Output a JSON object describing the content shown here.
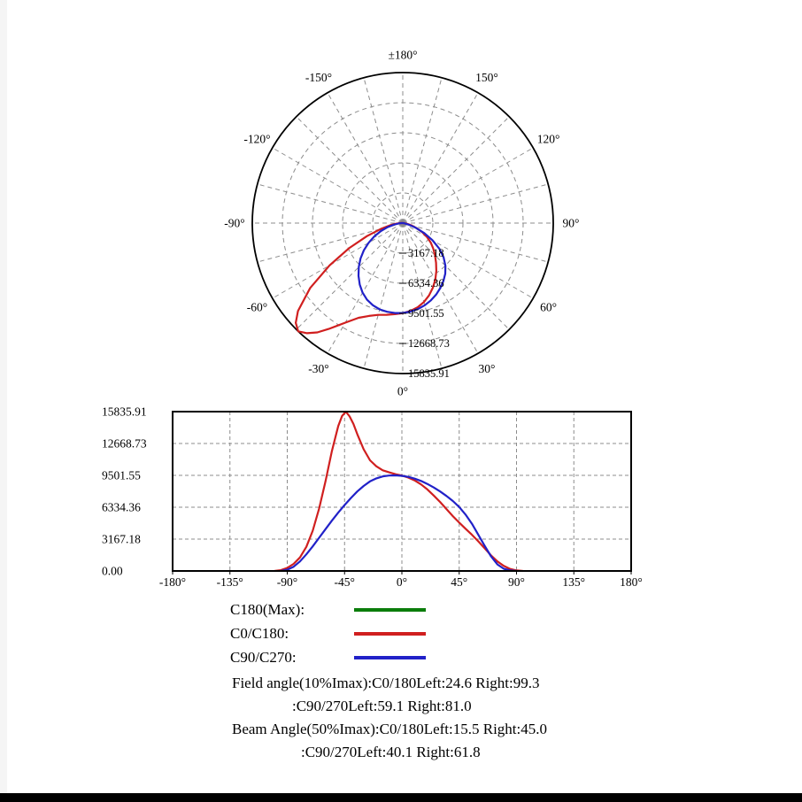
{
  "colors": {
    "red": "#d01f1f",
    "blue": "#2121c8",
    "green": "#0b7d0b",
    "grid": "#8c8c8c",
    "axis": "#000000"
  },
  "chart_data": {
    "type": "line",
    "title": "",
    "views": [
      "polar",
      "cartesian"
    ],
    "imax": 15835.91,
    "unit_ticks": [
      0,
      3167.18,
      6334.36,
      9501.55,
      12668.73,
      15835.91
    ],
    "polar": {
      "spoke_step": 15,
      "angle_labels": [
        {
          "angle": 180,
          "label": "±180°"
        },
        {
          "angle": -150,
          "label": "-150°"
        },
        {
          "angle": 150,
          "label": "150°"
        },
        {
          "angle": -120,
          "label": "-120°"
        },
        {
          "angle": 120,
          "label": "120°"
        },
        {
          "angle": -90,
          "label": "-90°"
        },
        {
          "angle": 90,
          "label": "90°"
        },
        {
          "angle": -60,
          "label": "-60°"
        },
        {
          "angle": 60,
          "label": "60°"
        },
        {
          "angle": -30,
          "label": "-30°"
        },
        {
          "angle": 30,
          "label": "30°"
        },
        {
          "angle": 0,
          "label": "0°"
        }
      ],
      "radial_tick_labels": [
        "3167.18",
        "6334.36",
        "9501.55",
        "12668.73",
        "15835.91"
      ]
    },
    "cartesian": {
      "xlim": [
        -180,
        180
      ],
      "ylim": [
        0,
        15835.91
      ],
      "x_ticks": [
        {
          "value": -180,
          "label": "-180°"
        },
        {
          "value": -135,
          "label": "-135°"
        },
        {
          "value": -90,
          "label": "-90°"
        },
        {
          "value": -45,
          "label": "-45°"
        },
        {
          "value": 0,
          "label": "0°"
        },
        {
          "value": 45,
          "label": "45°"
        },
        {
          "value": 90,
          "label": "90°"
        },
        {
          "value": 135,
          "label": "135°"
        },
        {
          "value": 180,
          "label": "180°"
        }
      ],
      "y_tick_labels": [
        "15835.91",
        "12668.73",
        "9501.55",
        "6334.36",
        "3167.18",
        "0.00"
      ]
    },
    "series": [
      {
        "name": "C180(Max)",
        "color_key": "green",
        "points": []
      },
      {
        "name": "C0/C180",
        "color_key": "red",
        "points": [
          [
            -100,
            0
          ],
          [
            -95,
            80
          ],
          [
            -90,
            300
          ],
          [
            -85,
            700
          ],
          [
            -80,
            1350
          ],
          [
            -75,
            2400
          ],
          [
            -70,
            4000
          ],
          [
            -65,
            6200
          ],
          [
            -60,
            8900
          ],
          [
            -55,
            11900
          ],
          [
            -50,
            14400
          ],
          [
            -47,
            15400
          ],
          [
            -44,
            15835.91
          ],
          [
            -41,
            15350
          ],
          [
            -38,
            14600
          ],
          [
            -35,
            13600
          ],
          [
            -30,
            12100
          ],
          [
            -25,
            11000
          ],
          [
            -20,
            10400
          ],
          [
            -15,
            10000
          ],
          [
            -10,
            9800
          ],
          [
            -5,
            9620
          ],
          [
            0,
            9480
          ],
          [
            5,
            9280
          ],
          [
            10,
            9000
          ],
          [
            15,
            8600
          ],
          [
            20,
            8100
          ],
          [
            25,
            7500
          ],
          [
            30,
            6850
          ],
          [
            35,
            6150
          ],
          [
            40,
            5450
          ],
          [
            45,
            4800
          ],
          [
            50,
            4200
          ],
          [
            55,
            3600
          ],
          [
            60,
            2950
          ],
          [
            65,
            2250
          ],
          [
            70,
            1550
          ],
          [
            75,
            950
          ],
          [
            80,
            500
          ],
          [
            85,
            200
          ],
          [
            90,
            50
          ],
          [
            95,
            0
          ]
        ]
      },
      {
        "name": "C90/C270",
        "color_key": "blue",
        "points": [
          [
            -95,
            0
          ],
          [
            -90,
            120
          ],
          [
            -85,
            420
          ],
          [
            -80,
            950
          ],
          [
            -75,
            1650
          ],
          [
            -70,
            2450
          ],
          [
            -65,
            3300
          ],
          [
            -60,
            4150
          ],
          [
            -55,
            5000
          ],
          [
            -50,
            5800
          ],
          [
            -45,
            6550
          ],
          [
            -40,
            7250
          ],
          [
            -35,
            7900
          ],
          [
            -30,
            8450
          ],
          [
            -25,
            8900
          ],
          [
            -20,
            9200
          ],
          [
            -15,
            9400
          ],
          [
            -10,
            9480
          ],
          [
            -5,
            9500
          ],
          [
            0,
            9460
          ],
          [
            5,
            9350
          ],
          [
            10,
            9180
          ],
          [
            15,
            8950
          ],
          [
            20,
            8650
          ],
          [
            25,
            8300
          ],
          [
            30,
            7900
          ],
          [
            35,
            7450
          ],
          [
            40,
            6950
          ],
          [
            45,
            6350
          ],
          [
            50,
            5600
          ],
          [
            55,
            4700
          ],
          [
            60,
            3600
          ],
          [
            65,
            2500
          ],
          [
            70,
            1450
          ],
          [
            75,
            650
          ],
          [
            80,
            220
          ],
          [
            85,
            50
          ],
          [
            90,
            0
          ]
        ]
      }
    ]
  },
  "legend": [
    {
      "label": "C180(Max):",
      "color_key": "green"
    },
    {
      "label": "C0/C180:",
      "color_key": "red"
    },
    {
      "label": "C90/C270:",
      "color_key": "blue"
    }
  ],
  "annotations": [
    "Field angle(10%Imax):C0/180Left:24.6 Right:99.3",
    ":C90/270Left:59.1 Right:81.0",
    "Beam Angle(50%Imax):C0/180Left:15.5 Right:45.0",
    ":C90/270Left:40.1 Right:61.8"
  ]
}
